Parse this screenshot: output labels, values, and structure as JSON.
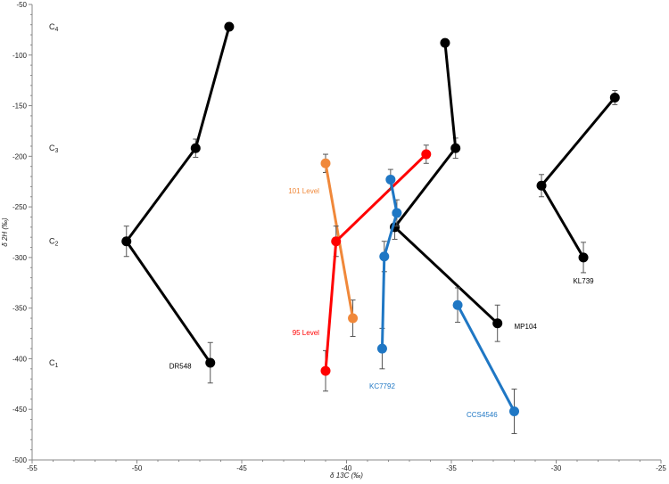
{
  "chart_data": {
    "type": "line",
    "xlabel": "δ 13C (‰)",
    "ylabel": "δ 2H (‰)",
    "xlim": [
      -55,
      -25
    ],
    "ylim": [
      -500,
      -50
    ],
    "xticks": [
      -55,
      -50,
      -45,
      -40,
      -35,
      -30,
      -25
    ],
    "yticks": [
      -50,
      -100,
      -150,
      -200,
      -250,
      -300,
      -350,
      -400,
      -450,
      -500
    ],
    "grid": false,
    "stage_labels": [
      {
        "text": "C4",
        "main": "C",
        "sub": "4",
        "y": -72
      },
      {
        "text": "C3",
        "main": "C",
        "sub": "3",
        "y": -192
      },
      {
        "text": "C2",
        "main": "C",
        "sub": "2",
        "y": -284
      },
      {
        "text": "C1",
        "main": "C",
        "sub": "1",
        "y": -404
      }
    ],
    "series": [
      {
        "name": "DR548",
        "color": "#000000",
        "points": [
          {
            "x": -45.6,
            "y": -72,
            "err": 0
          },
          {
            "x": -47.2,
            "y": -192,
            "err": 9
          },
          {
            "x": -50.5,
            "y": -284,
            "err": 15
          },
          {
            "x": -46.5,
            "y": -404,
            "err": 20
          }
        ]
      },
      {
        "name": "MP104",
        "color": "#000000",
        "points": [
          {
            "x": -35.3,
            "y": -88,
            "err": 0
          },
          {
            "x": -34.8,
            "y": -192,
            "err": 10
          },
          {
            "x": -37.7,
            "y": -270,
            "err": 12
          },
          {
            "x": -32.8,
            "y": -365,
            "err": 18
          }
        ]
      },
      {
        "name": "KL739",
        "color": "#000000",
        "points": [
          {
            "x": -27.2,
            "y": -142,
            "err": 7
          },
          {
            "x": -30.7,
            "y": -229,
            "err": 11
          },
          {
            "x": -28.7,
            "y": -300,
            "err": 15
          }
        ]
      },
      {
        "name": "101 Level",
        "color": "#f0883a",
        "points": [
          {
            "x": -41.0,
            "y": -207,
            "err": 9
          },
          {
            "x": -39.7,
            "y": -360,
            "err": 18
          }
        ]
      },
      {
        "name": "95 Level",
        "color": "#ff0000",
        "points": [
          {
            "x": -36.2,
            "y": -198,
            "err": 9
          },
          {
            "x": -40.5,
            "y": -284,
            "err": 15
          },
          {
            "x": -41.0,
            "y": -412,
            "err": 20
          }
        ]
      },
      {
        "name": "KC7792",
        "color": "#1f77c4",
        "points": [
          {
            "x": -37.9,
            "y": -223,
            "err": 10
          },
          {
            "x": -37.6,
            "y": -256,
            "err": 13
          },
          {
            "x": -38.2,
            "y": -299,
            "err": 15
          },
          {
            "x": -38.3,
            "y": -390,
            "err": 20
          }
        ]
      },
      {
        "name": "CCS4546",
        "color": "#1f77c4",
        "points": [
          {
            "x": -34.7,
            "y": -347,
            "err": 17
          },
          {
            "x": -32.0,
            "y": -452,
            "err": 22
          }
        ]
      }
    ],
    "labels": [
      {
        "series": "DR548",
        "text": "DR548",
        "x": -47.4,
        "y": -407,
        "anchor": "end"
      },
      {
        "series": "MP104",
        "text": "MP104",
        "x": -32.0,
        "y": -368,
        "anchor": "start"
      },
      {
        "series": "KL739",
        "text": "KL739",
        "x": -28.7,
        "y": -323,
        "anchor": "middle"
      },
      {
        "series": "101 Level",
        "text": "101 Level",
        "x": -41.3,
        "y": -234,
        "anchor": "end"
      },
      {
        "series": "95 Level",
        "text": "95 Level",
        "x": -41.3,
        "y": -374,
        "anchor": "end"
      },
      {
        "series": "KC7792",
        "text": "KC7792",
        "x": -38.3,
        "y": -427,
        "anchor": "middle"
      },
      {
        "series": "CCS4546",
        "text": "CCS4546",
        "x": -32.8,
        "y": -455,
        "anchor": "end"
      }
    ]
  }
}
